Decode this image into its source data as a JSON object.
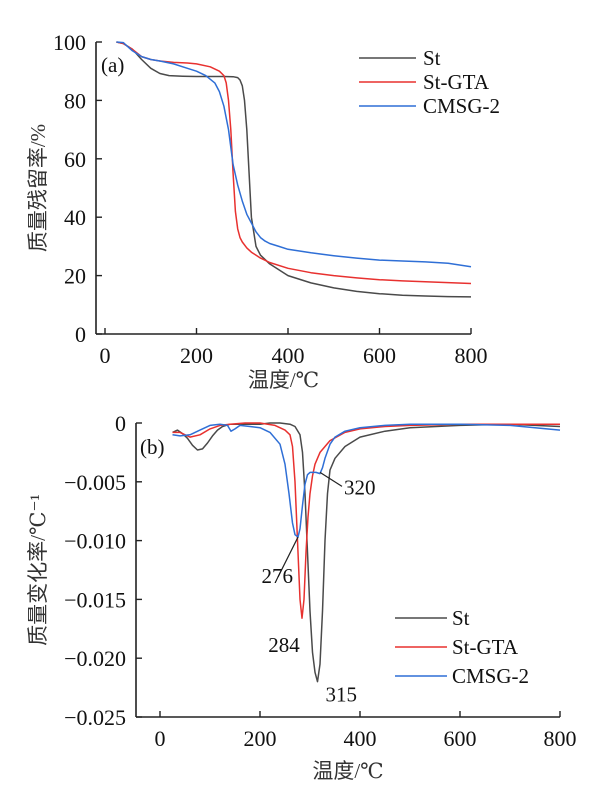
{
  "chart_data": [
    {
      "type": "line",
      "panel_label": "(a)",
      "title": "",
      "xlabel": "温度/℃",
      "ylabel": "质量残留率/%",
      "xlim": [
        -40,
        800
      ],
      "ylim": [
        0,
        100
      ],
      "xticks": [
        0,
        200,
        400,
        600,
        800
      ],
      "yticks": [
        0,
        20,
        40,
        60,
        80,
        100
      ],
      "grid": false,
      "legend_position": "top-right",
      "series": [
        {
          "name": "St",
          "color": "#4a4a4a",
          "x": [
            25,
            40,
            60,
            80,
            100,
            120,
            140,
            170,
            200,
            230,
            260,
            280,
            290,
            295,
            300,
            305,
            310,
            315,
            320,
            330,
            340,
            360,
            400,
            450,
            500,
            550,
            600,
            650,
            700,
            750,
            800
          ],
          "y": [
            100,
            99.5,
            97.5,
            94,
            91,
            89.2,
            88.5,
            88.3,
            88.2,
            88.2,
            88.2,
            88.1,
            87.8,
            87,
            85,
            80,
            70,
            55,
            40,
            30,
            27,
            24,
            20,
            17.5,
            15.8,
            14.6,
            13.8,
            13.3,
            13,
            12.8,
            12.7
          ]
        },
        {
          "name": "St-GTA",
          "color": "#e8312f",
          "x": [
            25,
            40,
            60,
            80,
            100,
            120,
            150,
            180,
            200,
            230,
            250,
            260,
            265,
            270,
            275,
            280,
            285,
            290,
            295,
            300,
            310,
            320,
            340,
            360,
            400,
            450,
            500,
            550,
            600,
            650,
            700,
            750,
            800
          ],
          "y": [
            100,
            99.5,
            97.5,
            95,
            94,
            93.5,
            93,
            92.8,
            92.5,
            91.5,
            90,
            88.5,
            86,
            80,
            70,
            55,
            42,
            36,
            33,
            31.5,
            29.5,
            28,
            26,
            24.5,
            22.5,
            21,
            20,
            19.2,
            18.6,
            18.2,
            17.9,
            17.6,
            17.3
          ]
        },
        {
          "name": "CMSG-2",
          "color": "#2f6fd6",
          "x": [
            25,
            40,
            60,
            80,
            100,
            120,
            150,
            180,
            200,
            220,
            240,
            250,
            260,
            270,
            275,
            280,
            290,
            300,
            310,
            320,
            330,
            340,
            350,
            360,
            380,
            400,
            450,
            500,
            550,
            600,
            650,
            700,
            750,
            800
          ],
          "y": [
            100,
            99.8,
            97,
            95,
            94,
            93.5,
            92.5,
            91,
            90,
            88.5,
            86,
            83,
            78,
            70,
            64,
            58,
            51,
            45.5,
            41,
            38,
            35,
            33,
            31.8,
            31,
            30,
            29,
            27.8,
            26.8,
            26,
            25.3,
            25,
            24.7,
            24.2,
            23
          ]
        }
      ]
    },
    {
      "type": "line",
      "panel_label": "(b)",
      "title": "",
      "xlabel": "温度/℃",
      "ylabel": "质量变化率/℃⁻¹",
      "xlim": [
        -40,
        800
      ],
      "ylim": [
        -0.025,
        0
      ],
      "xticks": [
        0,
        200,
        400,
        600,
        800
      ],
      "yticks": [
        0,
        -0.005,
        -0.01,
        -0.015,
        -0.02,
        -0.025
      ],
      "ytick_labels": [
        "0",
        "−0.005",
        "−0.010",
        "−0.015",
        "−0.020",
        "−0.025"
      ],
      "grid": false,
      "legend_position": "bottom-right",
      "annotations": [
        {
          "text": "276",
          "x": 276,
          "y": -0.0097
        },
        {
          "text": "320",
          "x": 320,
          "y": -0.0042
        },
        {
          "text": "284",
          "x": 284,
          "y": -0.0166
        },
        {
          "text": "315",
          "x": 315,
          "y": -0.022
        }
      ],
      "series": [
        {
          "name": "St",
          "color": "#4a4a4a",
          "x": [
            25,
            35,
            45,
            55,
            65,
            75,
            85,
            95,
            105,
            115,
            125,
            140,
            160,
            180,
            200,
            220,
            240,
            260,
            270,
            280,
            285,
            290,
            295,
            300,
            305,
            310,
            315,
            320,
            325,
            330,
            335,
            340,
            350,
            370,
            400,
            450,
            500,
            600,
            700,
            800
          ],
          "y": [
            -0.0008,
            -0.0006,
            -0.0009,
            -0.0013,
            -0.0019,
            -0.0023,
            -0.0022,
            -0.0017,
            -0.0011,
            -0.0006,
            -0.0003,
            -0.0001,
            -0.0001,
            -0.0001,
            -0.0001,
            0.0,
            0.0,
            -0.0001,
            -0.0003,
            -0.001,
            -0.0025,
            -0.006,
            -0.011,
            -0.016,
            -0.0195,
            -0.0212,
            -0.022,
            -0.0205,
            -0.016,
            -0.01,
            -0.006,
            -0.004,
            -0.003,
            -0.002,
            -0.0012,
            -0.0007,
            -0.0004,
            -0.0002,
            -0.0001,
            -0.0003
          ]
        },
        {
          "name": "St-GTA",
          "color": "#e8312f",
          "x": [
            25,
            40,
            60,
            80,
            100,
            120,
            140,
            170,
            200,
            230,
            250,
            260,
            265,
            270,
            275,
            280,
            284,
            288,
            292,
            296,
            300,
            305,
            310,
            320,
            340,
            370,
            400,
            450,
            500,
            600,
            700,
            800
          ],
          "y": [
            -0.0008,
            -0.0008,
            -0.0012,
            -0.001,
            -0.0005,
            -0.0002,
            -0.0001,
            0.0,
            0.0,
            -0.0002,
            -0.0006,
            -0.001,
            -0.002,
            -0.005,
            -0.01,
            -0.015,
            -0.0166,
            -0.015,
            -0.011,
            -0.008,
            -0.006,
            -0.0045,
            -0.0035,
            -0.0025,
            -0.0015,
            -0.0008,
            -0.0005,
            -0.0003,
            -0.0002,
            -0.0001,
            -0.0001,
            -0.0001
          ]
        },
        {
          "name": "CMSG-2",
          "color": "#2f6fd6",
          "x": [
            25,
            40,
            60,
            80,
            100,
            120,
            135,
            142,
            150,
            160,
            180,
            200,
            220,
            240,
            250,
            258,
            265,
            270,
            276,
            280,
            285,
            290,
            295,
            300,
            305,
            312,
            320,
            325,
            330,
            340,
            350,
            370,
            400,
            450,
            500,
            600,
            700,
            800
          ],
          "y": [
            -0.001,
            -0.0011,
            -0.001,
            -0.0006,
            -0.0002,
            -0.0001,
            -0.0002,
            -0.0007,
            -0.0005,
            -0.0002,
            -0.0003,
            -0.0004,
            -0.0008,
            -0.0018,
            -0.0035,
            -0.006,
            -0.0085,
            -0.0095,
            -0.0097,
            -0.009,
            -0.007,
            -0.0052,
            -0.0044,
            -0.0042,
            -0.0042,
            -0.0042,
            -0.0043,
            -0.0038,
            -0.003,
            -0.0018,
            -0.0012,
            -0.0007,
            -0.0004,
            -0.0002,
            -0.0001,
            -0.0001,
            -0.0002,
            -0.0006
          ]
        }
      ]
    }
  ]
}
